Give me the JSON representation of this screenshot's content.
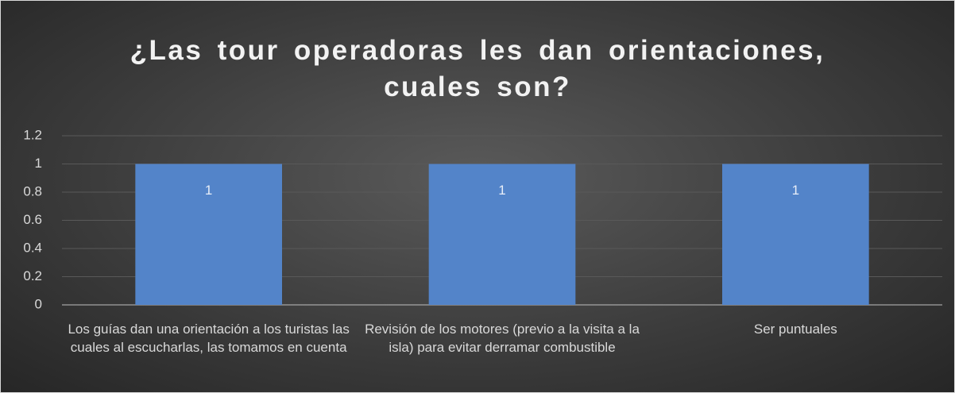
{
  "chart_data": {
    "type": "bar",
    "title": "¿Las tour operadoras les dan orientaciones, cuales son?",
    "categories": [
      "Los guías dan una orientación a los turistas las cuales al escucharlas, las tomamos en cuenta",
      "Revisión de los motores (previo a la visita a la isla) para evitar derramar combustible",
      "Ser puntuales"
    ],
    "values": [
      1,
      1,
      1
    ],
    "color": "#5384c9",
    "ylim": [
      0,
      1.2
    ],
    "yticks": [
      0,
      0.2,
      0.4,
      0.6,
      0.8,
      1,
      1.2
    ],
    "grid": true
  }
}
